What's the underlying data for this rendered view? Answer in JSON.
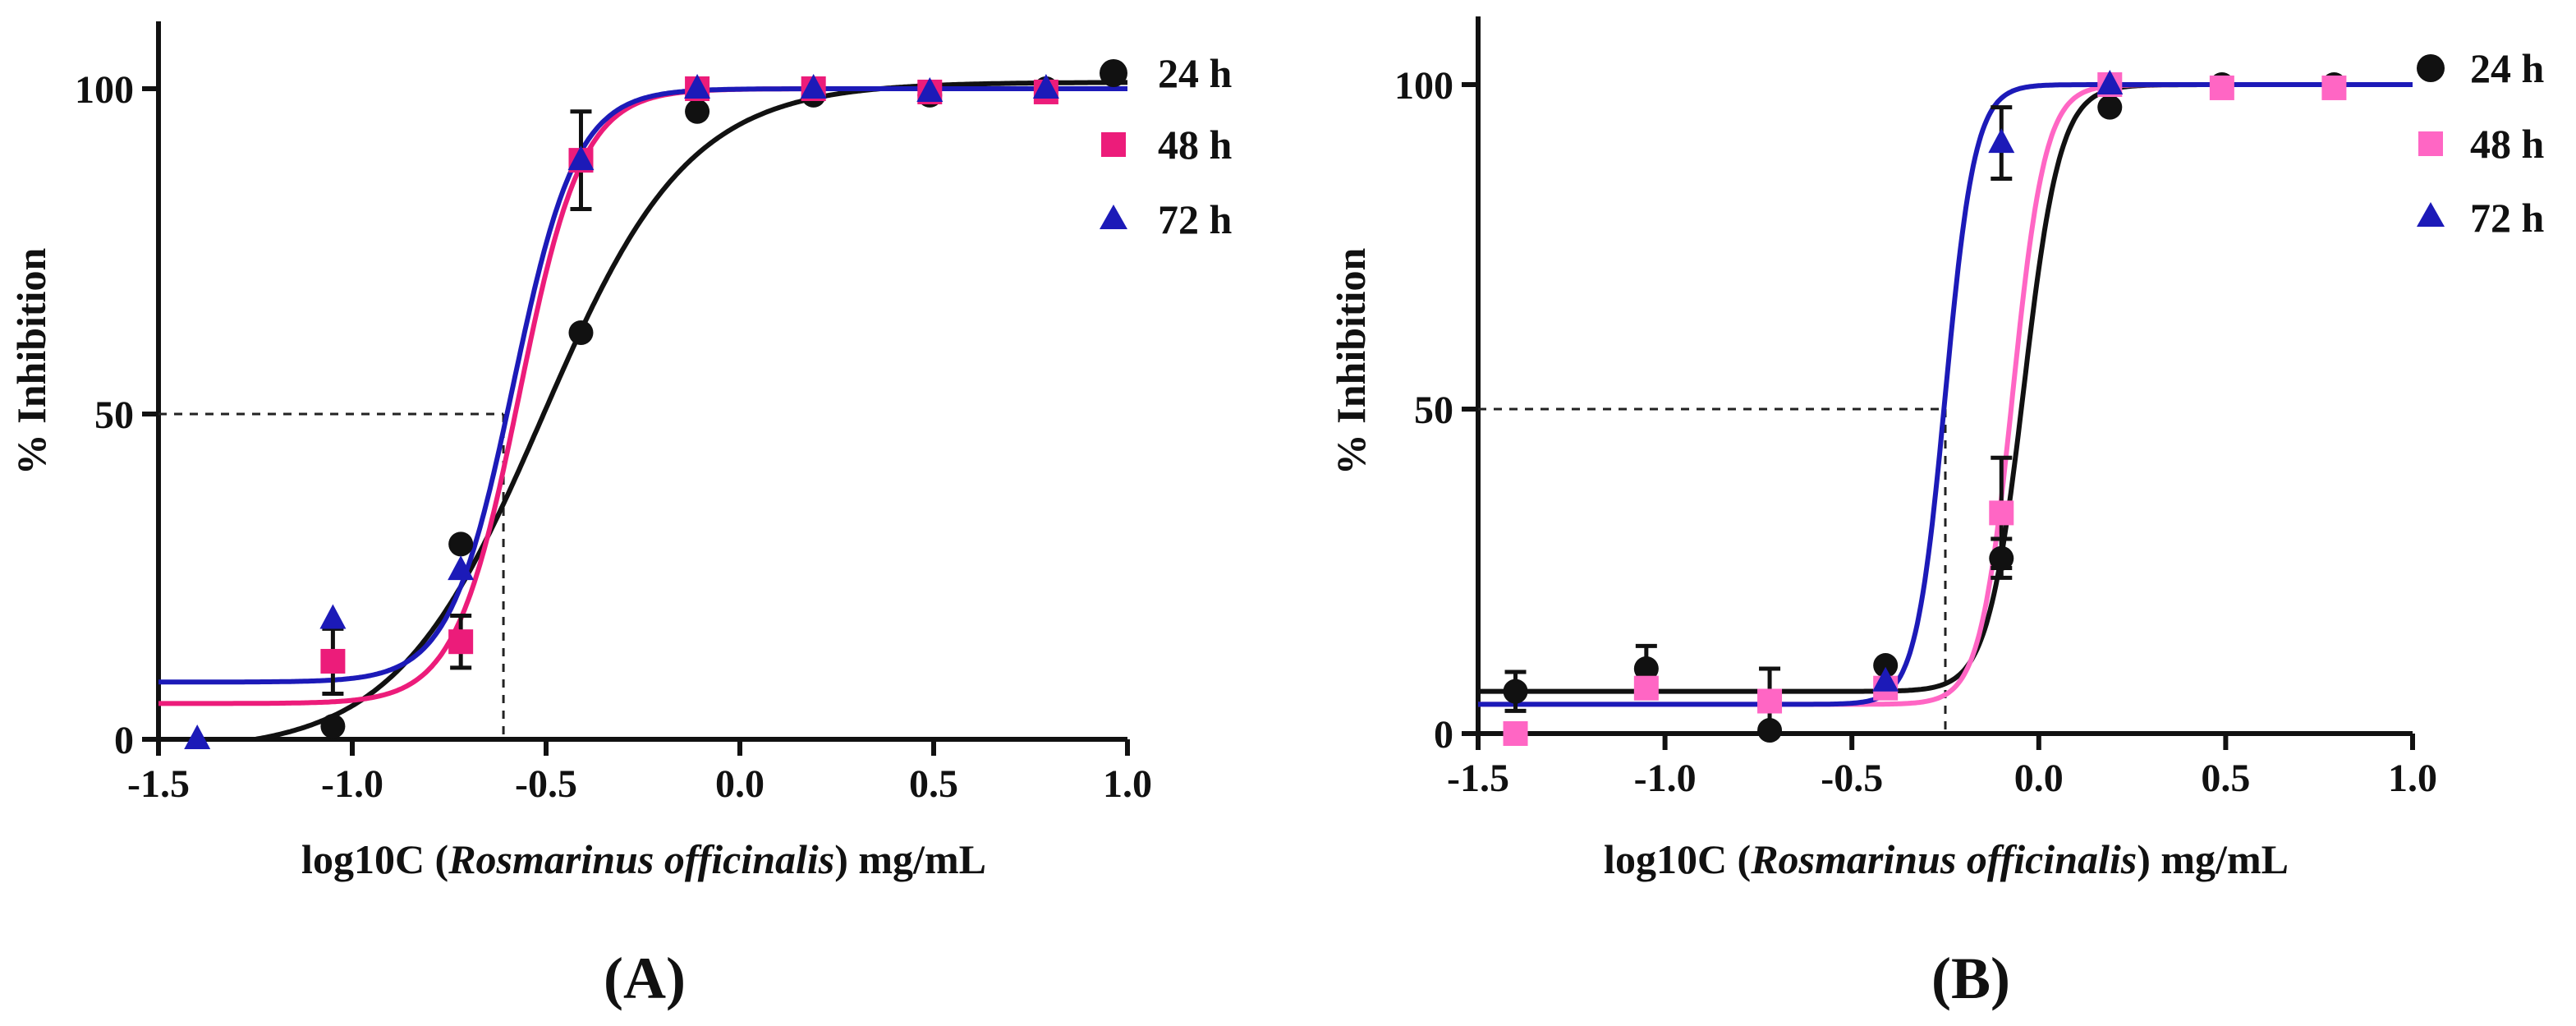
{
  "chart_data": [
    {
      "type": "line",
      "panel_label": "A",
      "xlabel_parts": [
        "log10C (",
        "Rosmarinus officinalis",
        ") mg/mL"
      ],
      "ylabel": "% Inhibition",
      "xlim": [
        -1.5,
        1.0
      ],
      "ylim": [
        0,
        110
      ],
      "x_ticks": [
        -1.5,
        -1.0,
        -0.5,
        0.0,
        0.5,
        1.0
      ],
      "x_tick_labels": [
        "-1.5",
        "-1.0",
        "-0.5",
        "0.0",
        "0.5",
        "1.0"
      ],
      "y_ticks": [
        0,
        50,
        100
      ],
      "y_tick_labels": [
        "0",
        "50",
        "100"
      ],
      "ic50_reference": {
        "x": -0.61,
        "y": 50
      },
      "legend_position": "top-right",
      "series": [
        {
          "name": "24 h",
          "color": "#111111",
          "marker": "circle",
          "fit": {
            "bottom": -2,
            "top": 101,
            "logIC50": -0.51,
            "hill": 2.3
          },
          "points": [
            {
              "x": -1.05,
              "y": 2,
              "err": 0
            },
            {
              "x": -0.72,
              "y": 30,
              "err": 0
            },
            {
              "x": -0.41,
              "y": 62.5,
              "err": 0
            },
            {
              "x": -0.11,
              "y": 96.5,
              "err": 0
            },
            {
              "x": 0.19,
              "y": 99,
              "err": 0
            },
            {
              "x": 0.49,
              "y": 99,
              "err": 0
            },
            {
              "x": 0.79,
              "y": 100,
              "err": 0
            }
          ]
        },
        {
          "name": "48 h",
          "color": "#ec1c7a",
          "marker": "square",
          "fit": {
            "bottom": 5.5,
            "top": 100,
            "logIC50": -0.57,
            "hill": 5.3
          },
          "points": [
            {
              "x": -1.05,
              "y": 12,
              "err": 5
            },
            {
              "x": -0.72,
              "y": 15,
              "err": 4
            },
            {
              "x": -0.41,
              "y": 89,
              "err": 7.5
            },
            {
              "x": -0.11,
              "y": 100,
              "err": 0
            },
            {
              "x": 0.19,
              "y": 100,
              "err": 0
            },
            {
              "x": 0.49,
              "y": 99.5,
              "err": 0
            },
            {
              "x": 0.79,
              "y": 99.5,
              "err": 0
            }
          ]
        },
        {
          "name": "72 h",
          "color": "#1c1ab8",
          "marker": "triangle",
          "fit": {
            "bottom": 8.8,
            "top": 100,
            "logIC50": -0.585,
            "hill": 5.3
          },
          "points": [
            {
              "x": -1.4,
              "y": 0,
              "err": 0
            },
            {
              "x": -1.05,
              "y": 18.5,
              "err": 0
            },
            {
              "x": -0.72,
              "y": 26,
              "err": 0
            },
            {
              "x": -0.41,
              "y": 89,
              "err": 0
            },
            {
              "x": -0.11,
              "y": 100,
              "err": 0
            },
            {
              "x": 0.19,
              "y": 100,
              "err": 0
            },
            {
              "x": 0.49,
              "y": 99.5,
              "err": 0
            },
            {
              "x": 0.79,
              "y": 100,
              "err": 0
            }
          ]
        }
      ]
    },
    {
      "type": "line",
      "panel_label": "B",
      "xlabel_parts": [
        "log10C (",
        "Rosmarinus officinalis",
        ") mg/mL"
      ],
      "ylabel": "% Inhibition",
      "xlim": [
        -1.5,
        1.0
      ],
      "ylim": [
        0,
        110
      ],
      "x_ticks": [
        -1.5,
        -1.0,
        -0.5,
        0.0,
        0.5,
        1.0
      ],
      "x_tick_labels": [
        "-1.5",
        "-1.0",
        "-0.5",
        "0.0",
        "0.5",
        "1.0"
      ],
      "y_ticks": [
        0,
        50,
        100
      ],
      "y_tick_labels": [
        "0",
        "50",
        "100"
      ],
      "ic50_reference": {
        "x": -0.25,
        "y": 50
      },
      "legend_position": "top-right",
      "series": [
        {
          "name": "24 h",
          "color": "#111111",
          "marker": "circle",
          "fit": {
            "bottom": 6.5,
            "top": 100,
            "logIC50": -0.04,
            "hill": 9
          },
          "points": [
            {
              "x": -1.4,
              "y": 6.5,
              "err": 3
            },
            {
              "x": -1.05,
              "y": 10,
              "err": 3.5
            },
            {
              "x": -0.72,
              "y": 0.5,
              "err": 0
            },
            {
              "x": -0.41,
              "y": 10.5,
              "err": 0
            },
            {
              "x": -0.1,
              "y": 27,
              "err": 3
            },
            {
              "x": 0.19,
              "y": 96.5,
              "err": 0
            },
            {
              "x": 0.49,
              "y": 100,
              "err": 0
            },
            {
              "x": 0.79,
              "y": 100,
              "err": 0
            }
          ]
        },
        {
          "name": "48 h",
          "color": "#ff66c4",
          "marker": "square",
          "fit": {
            "bottom": 4.5,
            "top": 100,
            "logIC50": -0.07,
            "hill": 10
          },
          "points": [
            {
              "x": -1.4,
              "y": 0,
              "err": 0
            },
            {
              "x": -1.05,
              "y": 7,
              "err": 0
            },
            {
              "x": -0.72,
              "y": 5,
              "err": 5
            },
            {
              "x": -0.41,
              "y": 7,
              "err": 0
            },
            {
              "x": -0.1,
              "y": 34,
              "err": 8.5
            },
            {
              "x": 0.19,
              "y": 100,
              "err": 0
            },
            {
              "x": 0.49,
              "y": 99.5,
              "err": 0
            },
            {
              "x": 0.79,
              "y": 99.5,
              "err": 0
            }
          ]
        },
        {
          "name": "72 h",
          "color": "#1c1ab8",
          "marker": "triangle",
          "fit": {
            "bottom": 4.5,
            "top": 100,
            "logIC50": -0.25,
            "hill": 11
          },
          "points": [
            {
              "x": -0.41,
              "y": 8,
              "err": 0
            },
            {
              "x": -0.1,
              "y": 91,
              "err": 5.5
            },
            {
              "x": 0.19,
              "y": 100,
              "err": 0
            }
          ]
        }
      ]
    }
  ]
}
